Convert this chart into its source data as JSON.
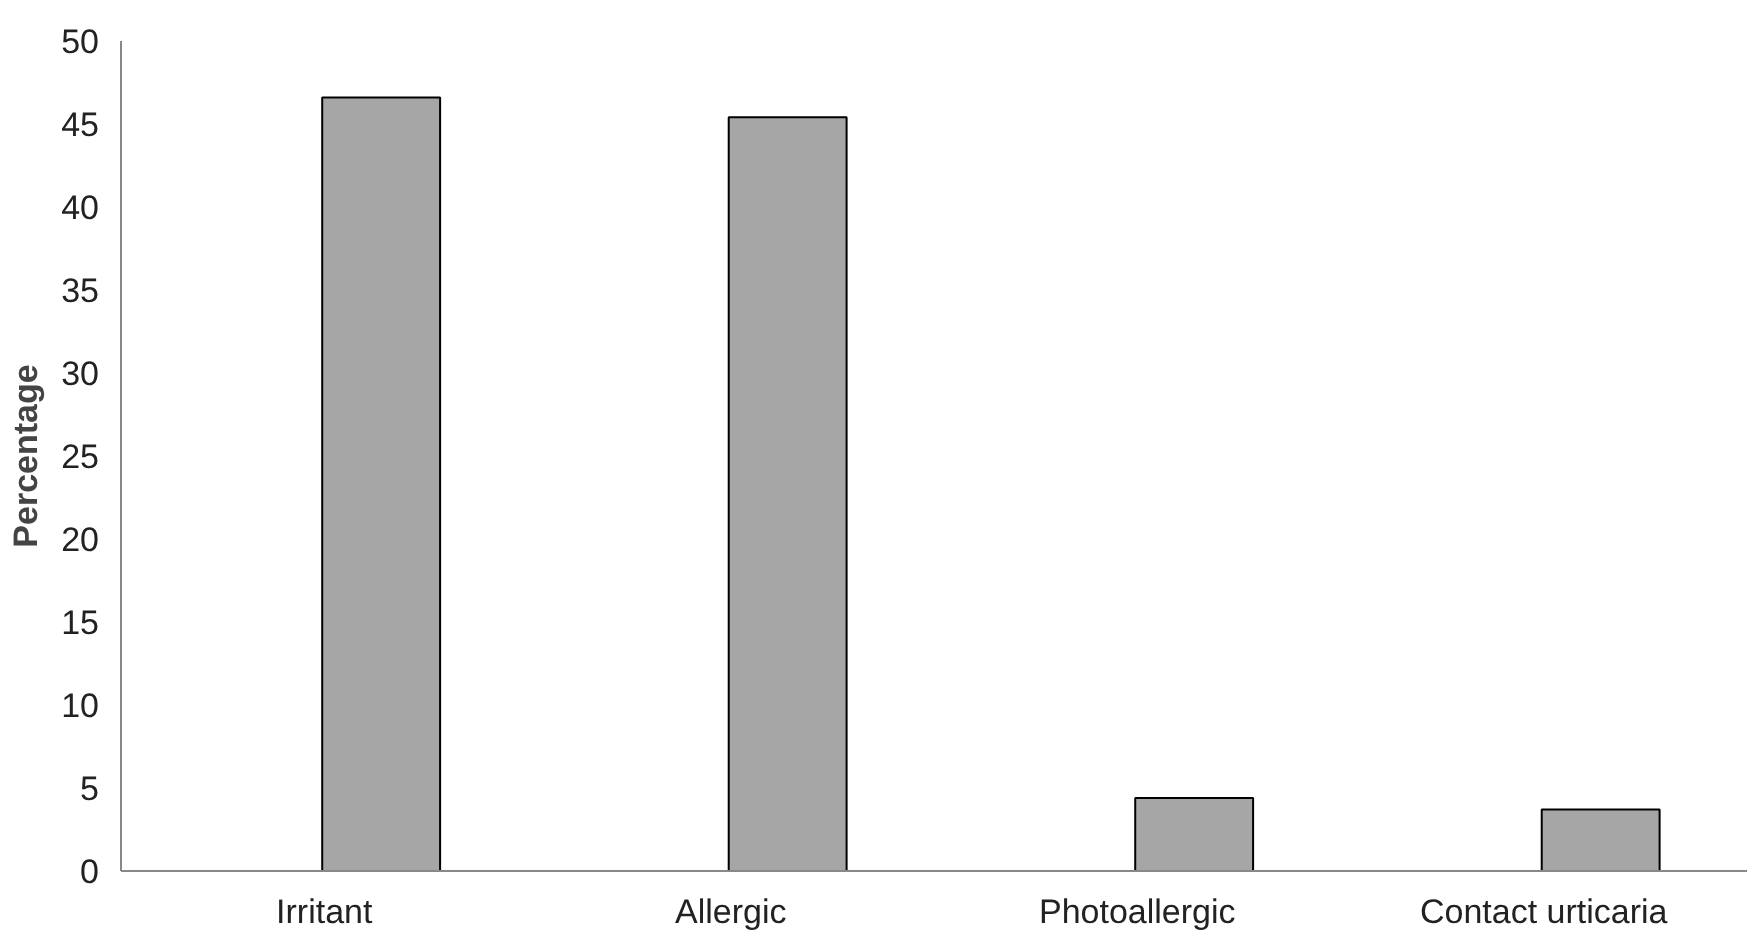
{
  "chart_data": {
    "type": "bar",
    "ylabel": "Percentage",
    "categories": [
      "Irritant",
      "Allergic",
      "Photoallergic",
      "Contact urticaria"
    ],
    "values": [
      46.6,
      45.4,
      4.4,
      3.7
    ],
    "color": "#a6a6a6",
    "ylim": [
      0,
      50
    ],
    "yticks": [
      0,
      5,
      10,
      15,
      20,
      25,
      30,
      35,
      40,
      45,
      50
    ],
    "grid": false
  }
}
